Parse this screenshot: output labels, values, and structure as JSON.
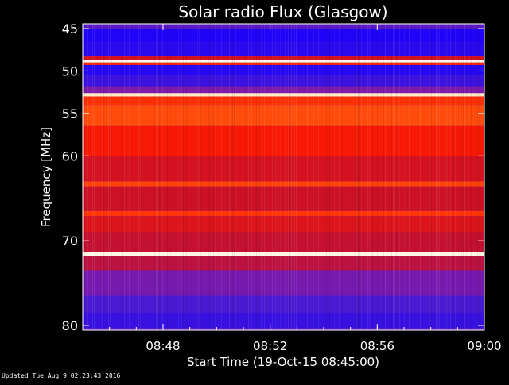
{
  "chart_data": {
    "type": "heatmap",
    "title": "Solar radio Flux (Glasgow)",
    "xlabel": "Start Time (19-Oct-15 08:45:00)",
    "ylabel": "Frequency [MHz]",
    "x_range": [
      "08:45:00",
      "09:00:00"
    ],
    "xticks": [
      "08:48",
      "08:52",
      "08:56",
      "09:00"
    ],
    "y_range": [
      45,
      80
    ],
    "y_direction": "increasing-downward",
    "yticks": [
      45,
      50,
      55,
      60,
      70,
      80
    ],
    "color_scale": [
      "#1a00ff",
      "#4a1bd0",
      "#8a1aa0",
      "#c8102a",
      "#ff1a00",
      "#ff5a10",
      "#ffd28a",
      "#ffffff"
    ],
    "background": "#000000",
    "bands": [
      {
        "from": 44.6,
        "to": 45.0,
        "level": 0.18
      },
      {
        "from": 45.0,
        "to": 46.6,
        "level": 0.02
      },
      {
        "from": 46.6,
        "to": 48.2,
        "level": 0.05
      },
      {
        "from": 48.2,
        "to": 48.7,
        "level": 0.45
      },
      {
        "from": 48.7,
        "to": 49.0,
        "level": 0.97
      },
      {
        "from": 49.0,
        "to": 49.3,
        "level": 0.6
      },
      {
        "from": 49.3,
        "to": 50.5,
        "level": 0.04
      },
      {
        "from": 50.5,
        "to": 51.8,
        "level": 0.1
      },
      {
        "from": 51.8,
        "to": 52.6,
        "level": 0.26
      },
      {
        "from": 52.6,
        "to": 53.0,
        "level": 0.93
      },
      {
        "from": 53.0,
        "to": 54.0,
        "level": 0.62
      },
      {
        "from": 54.0,
        "to": 56.5,
        "level": 0.68
      },
      {
        "from": 56.5,
        "to": 60.0,
        "level": 0.55
      },
      {
        "from": 60.0,
        "to": 63.0,
        "level": 0.46
      },
      {
        "from": 63.0,
        "to": 63.6,
        "level": 0.66
      },
      {
        "from": 63.6,
        "to": 66.5,
        "level": 0.44
      },
      {
        "from": 66.5,
        "to": 67.1,
        "level": 0.63
      },
      {
        "from": 67.1,
        "to": 69.0,
        "level": 0.48
      },
      {
        "from": 69.0,
        "to": 71.3,
        "level": 0.42
      },
      {
        "from": 71.3,
        "to": 71.8,
        "level": 0.97
      },
      {
        "from": 71.8,
        "to": 73.5,
        "level": 0.4
      },
      {
        "from": 73.5,
        "to": 76.5,
        "level": 0.24
      },
      {
        "from": 76.5,
        "to": 78.5,
        "level": 0.14
      },
      {
        "from": 78.5,
        "to": 80.3,
        "level": 0.09
      }
    ]
  },
  "footer": {
    "updated": "Updated Tue Aug  9 02:23:43 2016"
  }
}
